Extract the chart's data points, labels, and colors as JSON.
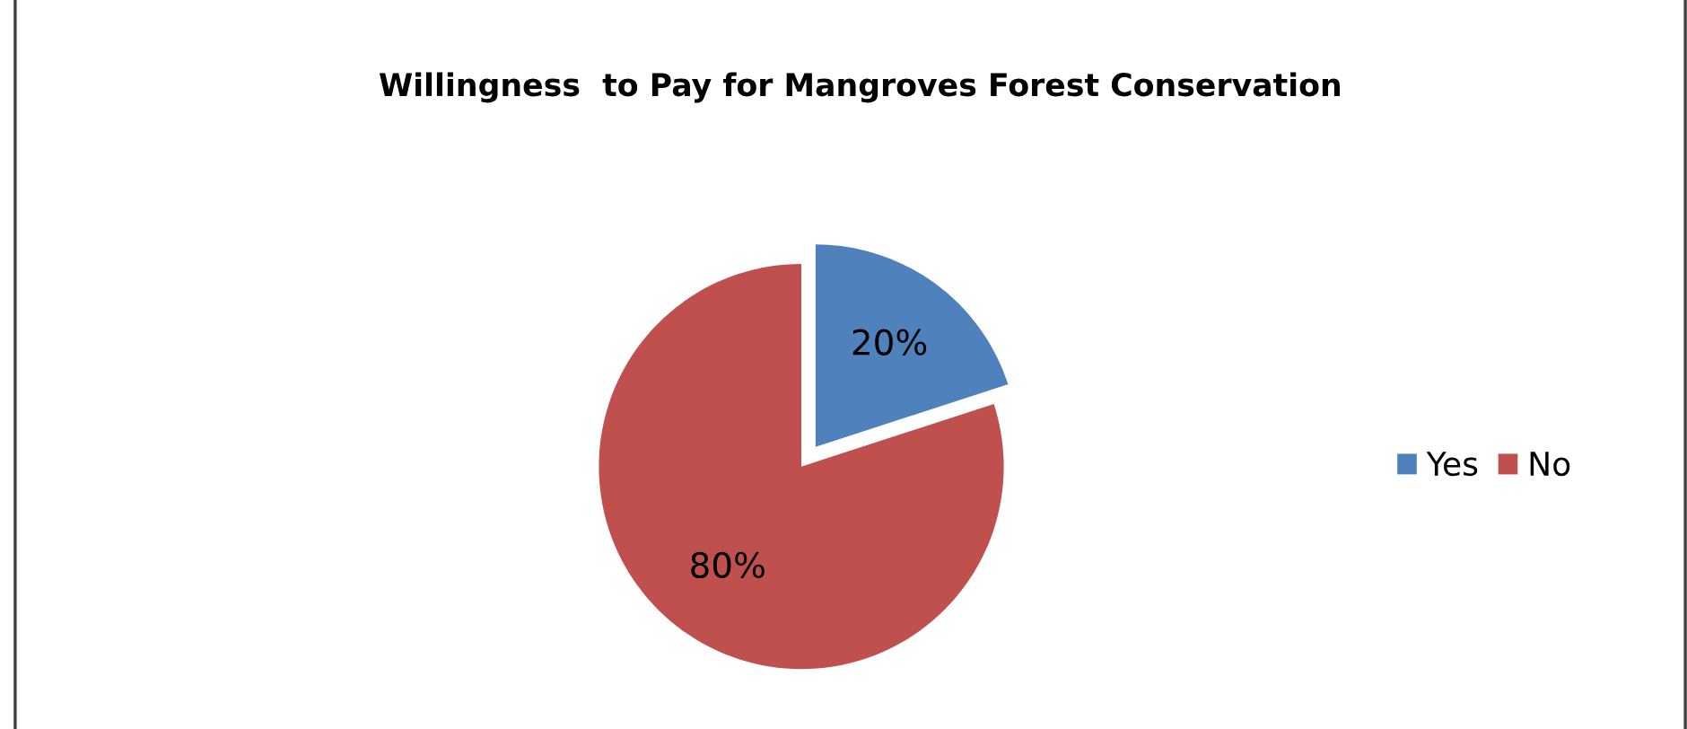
{
  "chart_data": {
    "type": "pie",
    "title": "Willingness  to Pay for Mangroves Forest Conservation",
    "categories": [
      "Yes",
      "No"
    ],
    "values": [
      20,
      80
    ],
    "colors": [
      "#4f81bd",
      "#c0504d"
    ],
    "value_labels": [
      "20%",
      "80%"
    ],
    "legend": "right"
  }
}
